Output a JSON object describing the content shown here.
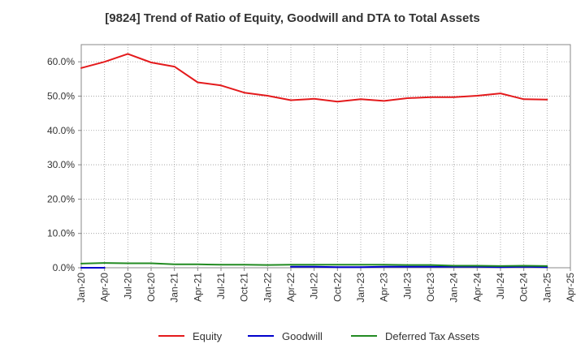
{
  "chart_data": {
    "type": "line",
    "title": "[9824]  Trend of Ratio of Equity, Goodwill and DTA to Total Assets",
    "xlabel": "",
    "ylabel": "",
    "ylim": [
      0,
      65
    ],
    "y_ticks": [
      0,
      10,
      20,
      30,
      40,
      50,
      60
    ],
    "y_tick_labels": [
      "0.0%",
      "10.0%",
      "20.0%",
      "30.0%",
      "40.0%",
      "50.0%",
      "60.0%"
    ],
    "x_tick_labels": [
      "Jan-20",
      "Apr-20",
      "Jul-20",
      "Oct-20",
      "Jan-21",
      "Apr-21",
      "Jul-21",
      "Oct-21",
      "Jan-22",
      "Apr-22",
      "Jul-22",
      "Oct-22",
      "Jan-23",
      "Apr-23",
      "Jul-23",
      "Oct-23",
      "Jan-24",
      "Apr-24",
      "Jul-24",
      "Oct-24",
      "Jan-25",
      "Apr-25"
    ],
    "grid": true,
    "legend_position": "bottom",
    "series": [
      {
        "name": "Equity",
        "color": "#e41a1c",
        "start_index": 0,
        "values": [
          58.2,
          60.0,
          62.3,
          59.8,
          58.6,
          54.0,
          53.1,
          51.0,
          50.1,
          48.8,
          49.2,
          48.4,
          49.1,
          48.6,
          49.4,
          49.7,
          49.7,
          50.1,
          50.8,
          49.1,
          49.0
        ]
      },
      {
        "name": "Goodwill",
        "color": "#0000cc",
        "start_index": 0,
        "values": [
          0.0,
          0.0,
          null,
          null,
          null,
          null,
          null,
          null,
          null,
          0.3,
          0.3,
          0.2,
          0.2,
          0.3,
          0.3,
          0.3,
          0.3,
          0.3,
          0.2,
          0.3,
          0.2
        ]
      },
      {
        "name": "Deferred Tax Assets",
        "color": "#228b22",
        "start_index": 0,
        "values": [
          1.2,
          1.4,
          1.3,
          1.3,
          1.0,
          1.0,
          0.9,
          0.9,
          0.8,
          0.9,
          0.9,
          0.9,
          0.9,
          0.9,
          0.8,
          0.8,
          0.6,
          0.6,
          0.5,
          0.6,
          0.5
        ]
      }
    ]
  }
}
